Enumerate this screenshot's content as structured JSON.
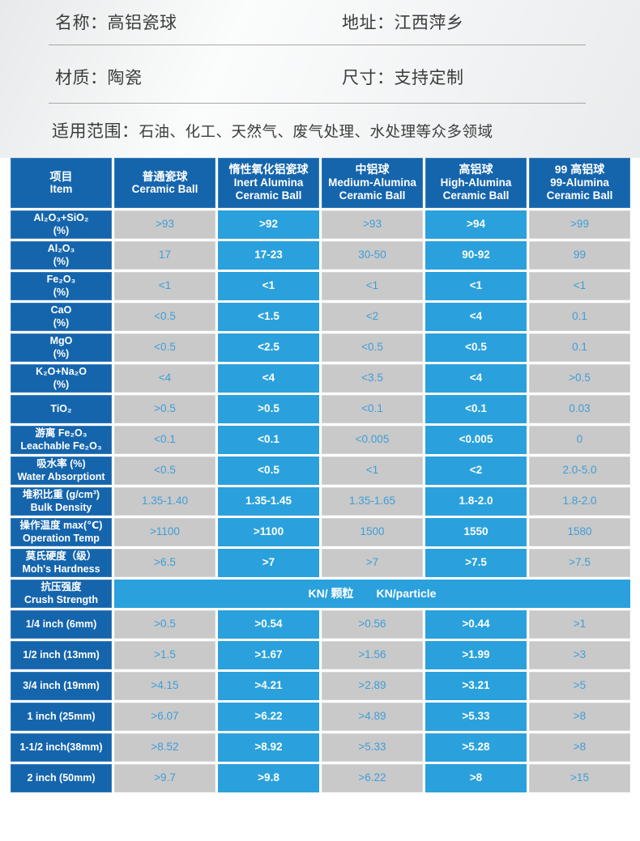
{
  "colors": {
    "header_blue": "#1565ad",
    "data_blue": "#2aa1dc",
    "cell_gray": "#c9c9c9",
    "value_blue_text": "#3e9ed6",
    "text_dark": "#3c3c3c",
    "divider_gray": "#a8a8a8"
  },
  "info": {
    "name": {
      "label": "名称：",
      "value": "高铝瓷球"
    },
    "address": {
      "label": "地址：",
      "value": "江西萍乡"
    },
    "material": {
      "label": "材质：",
      "value": "陶瓷"
    },
    "size": {
      "label": "尺寸：",
      "value": "支持定制"
    }
  },
  "scope": {
    "label": "适用范围：",
    "value": "石油、化工、天然气、废气处理、水处理等众多领域"
  },
  "table": {
    "columns": [
      {
        "zh": "项目",
        "en": "Item"
      },
      {
        "zh": "普通瓷球",
        "en": "Ceramic Ball"
      },
      {
        "zh": "惰性氧化铝瓷球",
        "en": "Inert Alumina\nCeramic Ball"
      },
      {
        "zh": "中铝球",
        "en": "Medium-Alumina\nCeramic Ball"
      },
      {
        "zh": "高铝球",
        "en": "High-Alumina\nCeramic Ball"
      },
      {
        "zh": "99 高铝球",
        "en": "99-Alumina\nCeramic Ball"
      }
    ],
    "rows": [
      {
        "label": "Al₂O₃+SiO₂\n(%)",
        "values": [
          ">93",
          ">92",
          ">93",
          ">94",
          ">99"
        ]
      },
      {
        "label": "Al₂O₃\n(%)",
        "values": [
          "17",
          "17-23",
          "30-50",
          "90-92",
          "99"
        ]
      },
      {
        "label": "Fe₂O₃\n(%)",
        "values": [
          "<1",
          "<1",
          "<1",
          "<1",
          "<1"
        ]
      },
      {
        "label": "CaO\n(%)",
        "values": [
          "<0.5",
          "<1.5",
          "<2",
          "<4",
          "0.1"
        ]
      },
      {
        "label": "MgO\n(%)",
        "values": [
          "<0.5",
          "<2.5",
          "<0.5",
          "<0.5",
          "0.1"
        ]
      },
      {
        "label": "K₂O+Na₂O\n(%)",
        "values": [
          "<4",
          "<4",
          "<3.5",
          "<4",
          ">0.5"
        ]
      },
      {
        "label": "TiO₂",
        "values": [
          ">0.5",
          ">0.5",
          "<0.1",
          "<0.1",
          "0.03"
        ]
      },
      {
        "label": "游离 Fe₂O₃\nLeachable Fe₂O₃",
        "values": [
          "<0.1",
          "<0.1",
          "<0.005",
          "<0.005",
          "0"
        ]
      },
      {
        "label": "吸水率 (%)\nWater Absorptiont",
        "values": [
          "<0.5",
          "<0.5",
          "<1",
          "<2",
          "2.0-5.0"
        ]
      },
      {
        "label": "堆积比重 (g/cm³)\nBulk Density",
        "values": [
          "1.35-1.40",
          "1.35-1.45",
          "1.35-1.65",
          "1.8-2.0",
          "1.8-2.0"
        ]
      },
      {
        "label": "操作温度 max(℃)\nOperation Temp",
        "values": [
          ">1100",
          ">1100",
          "1500",
          "1550",
          "1580"
        ]
      },
      {
        "label": "莫氏硬度（级）\nMoh's Hardness",
        "values": [
          ">6.5",
          ">7",
          ">7",
          ">7.5",
          ">7.5"
        ]
      },
      {
        "label": "抗压强度\nCrush Strength",
        "span": "KN/ 颗粒　　KN/particle"
      },
      {
        "label": "1/4 inch  (6mm)",
        "values": [
          ">0.5",
          ">0.54",
          ">0.56",
          ">0.44",
          ">1"
        ]
      },
      {
        "label": "1/2 inch (13mm)",
        "values": [
          ">1.5",
          ">1.67",
          ">1.56",
          ">1.99",
          ">3"
        ]
      },
      {
        "label": "3/4 inch (19mm)",
        "values": [
          ">4.15",
          ">4.21",
          ">2.89",
          ">3.21",
          ">5"
        ]
      },
      {
        "label": "1 inch  (25mm)",
        "values": [
          ">6.07",
          ">6.22",
          ">4.89",
          ">5.33",
          ">8"
        ]
      },
      {
        "label": "1-1/2 inch(38mm)",
        "values": [
          ">8.52",
          ">8.92",
          ">5.33",
          ">5.28",
          ">8"
        ]
      },
      {
        "label": "2 inch  (50mm)",
        "values": [
          ">9.7",
          ">9.8",
          ">6.22",
          ">8",
          ">15"
        ]
      }
    ]
  }
}
